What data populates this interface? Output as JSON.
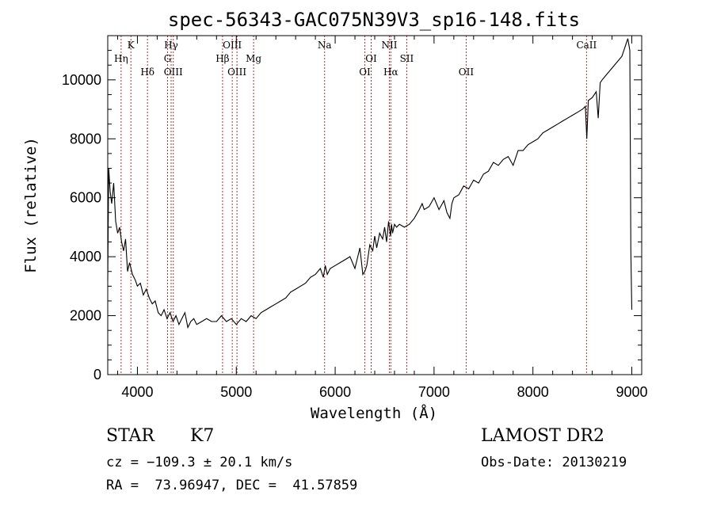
{
  "chart_data": {
    "type": "line",
    "title": "spec-56343-GAC075N39V3_sp16-148.fits",
    "xlabel": "Wavelength (Å)",
    "ylabel": "Flux (relative)",
    "xlim": [
      3700,
      9100
    ],
    "ylim": [
      0,
      11500
    ],
    "xticks": [
      4000,
      5000,
      6000,
      7000,
      8000,
      9000
    ],
    "yticks": [
      0,
      2000,
      4000,
      6000,
      8000,
      10000
    ],
    "grid": false,
    "series": [
      {
        "x": [
          3700,
          3710,
          3725,
          3740,
          3760,
          3780,
          3800,
          3820,
          3840,
          3860,
          3880,
          3900,
          3920,
          3950,
          3980,
          4000,
          4030,
          4060,
          4090,
          4120,
          4150,
          4180,
          4210,
          4240,
          4270,
          4300,
          4330,
          4360,
          4390,
          4420,
          4450,
          4480,
          4510,
          4540,
          4570,
          4600,
          4650,
          4700,
          4750,
          4800,
          4850,
          4900,
          4950,
          5000,
          5050,
          5100,
          5150,
          5200,
          5250,
          5300,
          5350,
          5400,
          5450,
          5500,
          5550,
          5600,
          5650,
          5700,
          5750,
          5800,
          5850,
          5880,
          5900,
          5920,
          5950,
          6000,
          6050,
          6100,
          6150,
          6200,
          6250,
          6280,
          6300,
          6320,
          6350,
          6380,
          6400,
          6420,
          6450,
          6480,
          6500,
          6520,
          6540,
          6560,
          6570,
          6580,
          6600,
          6620,
          6650,
          6700,
          6750,
          6800,
          6850,
          6880,
          6900,
          6950,
          7000,
          7050,
          7100,
          7130,
          7160,
          7180,
          7200,
          7250,
          7300,
          7350,
          7400,
          7450,
          7500,
          7550,
          7600,
          7650,
          7700,
          7750,
          7800,
          7850,
          7900,
          7950,
          8000,
          8050,
          8100,
          8150,
          8200,
          8250,
          8300,
          8350,
          8400,
          8450,
          8500,
          8530,
          8545,
          8560,
          8600,
          8640,
          8660,
          8680,
          8700,
          8750,
          8800,
          8850,
          8900,
          8940,
          8960,
          8980,
          8990,
          9000
        ],
        "y": [
          3200,
          7000,
          6200,
          5800,
          6500,
          5200,
          4800,
          5000,
          4500,
          4200,
          4600,
          3500,
          3800,
          3400,
          3200,
          3000,
          3100,
          2700,
          2900,
          2600,
          2400,
          2500,
          2100,
          2000,
          2200,
          1900,
          2100,
          1800,
          2000,
          1700,
          1900,
          2100,
          1600,
          1800,
          1900,
          1700,
          1800,
          1900,
          1800,
          1800,
          2000,
          1800,
          1900,
          1700,
          1900,
          1800,
          2000,
          1900,
          2100,
          2200,
          2300,
          2400,
          2500,
          2600,
          2800,
          2900,
          3000,
          3100,
          3300,
          3400,
          3600,
          3300,
          3700,
          3400,
          3600,
          3700,
          3800,
          3900,
          4000,
          3600,
          4300,
          3400,
          3500,
          3700,
          4400,
          4200,
          4700,
          4300,
          4800,
          4600,
          5000,
          4500,
          5200,
          4700,
          5100,
          4800,
          5100,
          5000,
          5100,
          5000,
          5100,
          5300,
          5600,
          5800,
          5600,
          5700,
          6000,
          5600,
          5900,
          5500,
          5300,
          5800,
          6000,
          6100,
          6400,
          6300,
          6600,
          6500,
          6800,
          6900,
          7200,
          7100,
          7300,
          7400,
          7100,
          7600,
          7600,
          7800,
          7900,
          8000,
          8200,
          8300,
          8400,
          8500,
          8600,
          8700,
          8800,
          8900,
          9000,
          9100,
          8000,
          9300,
          9400,
          9600,
          8700,
          9900,
          10000,
          10200,
          10400,
          10600,
          10800,
          11200,
          11400,
          11000,
          4200,
          2200
        ]
      }
    ],
    "line_markers": [
      {
        "label": "Hη",
        "x": 3835,
        "row": 2
      },
      {
        "label": "K",
        "x": 3934,
        "row": 1
      },
      {
        "label": "Hδ",
        "x": 4102,
        "row": 3
      },
      {
        "label": "Hγ",
        "x": 4341,
        "row": 1
      },
      {
        "label": "G",
        "x": 4305,
        "row": 2
      },
      {
        "label": "OIII",
        "x": 4363,
        "row": 3
      },
      {
        "label": "Hβ",
        "x": 4861,
        "row": 2
      },
      {
        "label": "OIII",
        "x": 4959,
        "row": 1
      },
      {
        "label": "OIII",
        "x": 5007,
        "row": 3
      },
      {
        "label": "Mg",
        "x": 5175,
        "row": 2
      },
      {
        "label": "Na",
        "x": 5893,
        "row": 1
      },
      {
        "label": "OI",
        "x": 6300,
        "row": 3
      },
      {
        "label": "OI",
        "x": 6364,
        "row": 2
      },
      {
        "label": "NII",
        "x": 6548,
        "row": 1
      },
      {
        "label": "Hα",
        "x": 6563,
        "row": 3
      },
      {
        "label": "SII",
        "x": 6724,
        "row": 2
      },
      {
        "label": "OII",
        "x": 7325,
        "row": 3
      },
      {
        "label": "CaII",
        "x": 8542,
        "row": 1
      }
    ]
  },
  "info": {
    "object_class": "STAR",
    "subclass": "K7",
    "survey": "LAMOST DR2",
    "redshift": "cz = −109.3 ± 20.1 km/s",
    "obs_date": "Obs-Date: 20130219",
    "coords": "RA =  73.96947, DEC =  41.57859"
  },
  "colors": {
    "line": "#000000",
    "marker": "#b03030"
  }
}
